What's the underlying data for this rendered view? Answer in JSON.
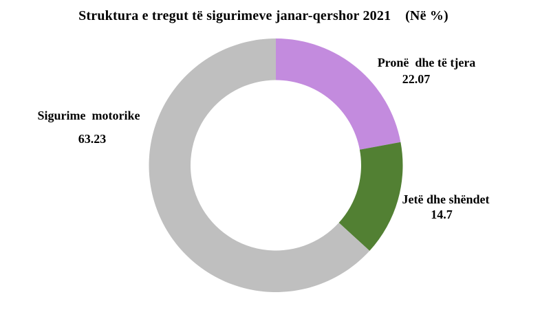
{
  "chart_data": {
    "type": "pie",
    "subtype": "donut",
    "title": "Struktura e tregut të sigurimeve janar-qershor 2021    (Në %)",
    "unit": "%",
    "legend": "none",
    "data_labels": "category name and value, outside",
    "start_angle_deg": 0,
    "direction": "clockwise",
    "inner_radius_ratio": 0.672,
    "background_color": "#FFFFFF",
    "slices": [
      {
        "label": "Pronë  dhe të tjera",
        "value": 22.07,
        "color": "#C38BDE"
      },
      {
        "label": "Jetë dhe shëndet",
        "value": 14.7,
        "color": "#528033"
      },
      {
        "label": "Sigurime  motorike",
        "value": 63.23,
        "color": "#BFBFBF"
      }
    ]
  }
}
